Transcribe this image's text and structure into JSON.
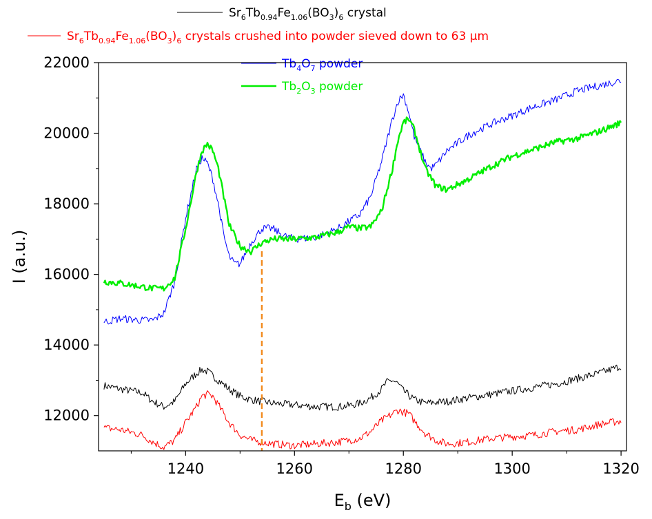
{
  "chart_data": {
    "type": "line",
    "xlabel": {
      "base": "E",
      "sub": "b",
      "rest": " (eV)"
    },
    "ylabel": "I (a.u.)",
    "xlim": [
      1224,
      1321
    ],
    "ylim": [
      11000,
      22000
    ],
    "x_ticks": [
      1240,
      1260,
      1280,
      1300,
      1320
    ],
    "y_ticks": [
      12000,
      14000,
      16000,
      18000,
      20000,
      22000
    ],
    "grid": false,
    "legend_position": "top",
    "reference_line": {
      "x": 1254,
      "color": "#f28a1c",
      "style": "dashed"
    },
    "series": [
      {
        "key": "crystal",
        "name": "Sr6Tb0.94Fe1.06(BO3)6 crystal",
        "legend_parts": [
          [
            "Sr",
            ""
          ],
          [
            "6",
            "sub"
          ],
          [
            "Tb",
            ""
          ],
          [
            "0.94",
            "sub"
          ],
          [
            "Fe",
            ""
          ],
          [
            "1.06",
            "sub"
          ],
          [
            "(BO",
            ""
          ],
          [
            "3",
            "sub"
          ],
          [
            ")",
            ""
          ],
          [
            "6",
            "sub"
          ],
          [
            " crystal",
            ""
          ]
        ],
        "color": "#000000",
        "width": 1,
        "x": [
          1225,
          1228,
          1232,
          1234,
          1236,
          1238,
          1240,
          1242,
          1243,
          1244,
          1246,
          1248,
          1250,
          1252,
          1254,
          1256,
          1260,
          1264,
          1268,
          1270,
          1272,
          1274,
          1276,
          1277,
          1278,
          1279,
          1280,
          1282,
          1284,
          1288,
          1292,
          1296,
          1300,
          1304,
          1308,
          1312,
          1316,
          1320
        ],
        "y": [
          12850,
          12750,
          12650,
          12400,
          12250,
          12400,
          12900,
          13200,
          13300,
          13250,
          13000,
          12750,
          12550,
          12450,
          12400,
          12350,
          12300,
          12250,
          12250,
          12280,
          12350,
          12500,
          12750,
          12950,
          13000,
          12900,
          12700,
          12450,
          12350,
          12400,
          12500,
          12600,
          12700,
          12800,
          12900,
          13050,
          13200,
          13400
        ]
      },
      {
        "key": "powder_crushed",
        "name": "Sr6Tb0.94Fe1.06(BO3)6 crystals crushed into powder sieved down to 63 μm",
        "legend_parts": [
          [
            "Sr",
            ""
          ],
          [
            "6",
            "sub"
          ],
          [
            "Tb",
            ""
          ],
          [
            "0.94",
            "sub"
          ],
          [
            "Fe",
            ""
          ],
          [
            "1.06",
            "sub"
          ],
          [
            "(BO",
            ""
          ],
          [
            "3",
            "sub"
          ],
          [
            ")",
            ""
          ],
          [
            "6",
            "sub"
          ],
          [
            " crystals crushed into powder sieved down to 63 μm",
            ""
          ]
        ],
        "color": "#ff0000",
        "width": 1,
        "x": [
          1225,
          1228,
          1232,
          1234,
          1236,
          1238,
          1240,
          1242,
          1243,
          1244,
          1245,
          1246,
          1248,
          1250,
          1252,
          1254,
          1256,
          1260,
          1264,
          1268,
          1272,
          1274,
          1276,
          1278,
          1279,
          1280,
          1281,
          1282,
          1284,
          1286,
          1288,
          1292,
          1296,
          1300,
          1304,
          1308,
          1312,
          1316,
          1320
        ],
        "y": [
          11650,
          11600,
          11450,
          11250,
          11100,
          11300,
          11800,
          12250,
          12550,
          12600,
          12550,
          12300,
          11800,
          11450,
          11300,
          11250,
          11200,
          11150,
          11200,
          11250,
          11350,
          11550,
          11850,
          12050,
          12150,
          12100,
          12050,
          11850,
          11500,
          11300,
          11200,
          11250,
          11350,
          11400,
          11450,
          11550,
          11600,
          11750,
          11850
        ]
      },
      {
        "key": "tb4o7",
        "name": "Tb4O7 powder",
        "legend_parts": [
          [
            "Tb",
            ""
          ],
          [
            "4",
            "sub"
          ],
          [
            "O",
            ""
          ],
          [
            "7",
            "sub"
          ],
          [
            " powder",
            ""
          ]
        ],
        "color": "#0000ff",
        "width": 1,
        "x": [
          1225,
          1228,
          1232,
          1234,
          1236,
          1238,
          1240,
          1242,
          1243,
          1244,
          1245,
          1246,
          1247,
          1248,
          1249,
          1250,
          1251,
          1252,
          1254,
          1256,
          1258,
          1260,
          1264,
          1268,
          1270,
          1272,
          1274,
          1276,
          1278,
          1279,
          1280,
          1281,
          1282,
          1284,
          1285,
          1286,
          1288,
          1292,
          1296,
          1300,
          1304,
          1308,
          1312,
          1316,
          1320
        ],
        "y": [
          14650,
          14750,
          14700,
          14700,
          14900,
          15800,
          17600,
          19000,
          19300,
          19150,
          18700,
          18000,
          17100,
          16500,
          16300,
          16300,
          16600,
          16900,
          17300,
          17300,
          17100,
          17000,
          17050,
          17300,
          17500,
          17700,
          18200,
          19200,
          20400,
          20900,
          21100,
          20600,
          19900,
          19200,
          19000,
          19100,
          19500,
          19950,
          20250,
          20500,
          20750,
          20950,
          21200,
          21350,
          21500
        ]
      },
      {
        "key": "tb2o3",
        "name": "Tb2O3 powder",
        "legend_parts": [
          [
            "Tb",
            ""
          ],
          [
            "2",
            "sub"
          ],
          [
            "O",
            ""
          ],
          [
            "3",
            "sub"
          ],
          [
            " powder",
            ""
          ]
        ],
        "color": "#00ee00",
        "width": 2.4,
        "x": [
          1225,
          1228,
          1232,
          1234,
          1236,
          1238,
          1240,
          1242,
          1243,
          1244,
          1245,
          1246,
          1247,
          1248,
          1250,
          1252,
          1254,
          1256,
          1258,
          1260,
          1264,
          1268,
          1270,
          1272,
          1274,
          1276,
          1278,
          1279,
          1280,
          1281,
          1282,
          1284,
          1286,
          1288,
          1292,
          1296,
          1300,
          1304,
          1308,
          1312,
          1316,
          1320
        ],
        "y": [
          15800,
          15750,
          15650,
          15600,
          15600,
          15900,
          17300,
          18900,
          19500,
          19700,
          19500,
          19000,
          18200,
          17400,
          16800,
          16650,
          16900,
          17000,
          17000,
          17000,
          17050,
          17200,
          17350,
          17300,
          17350,
          17800,
          19000,
          19800,
          20300,
          20400,
          20100,
          19000,
          18500,
          18400,
          18700,
          19050,
          19350,
          19550,
          19750,
          19850,
          20050,
          20300
        ]
      }
    ]
  }
}
